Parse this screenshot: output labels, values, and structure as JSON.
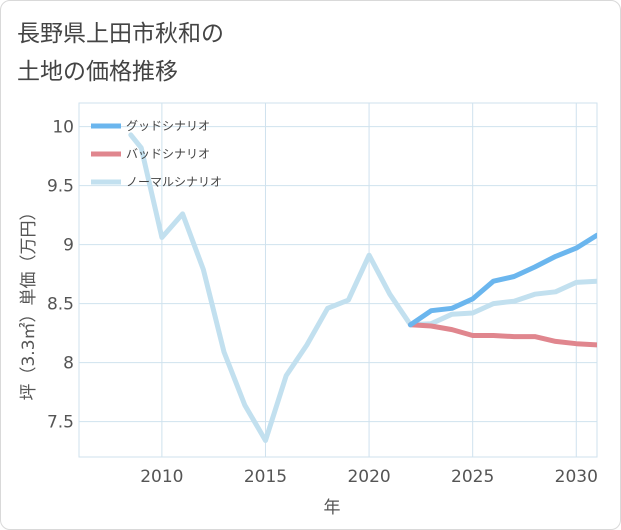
{
  "title": {
    "line1": "長野県上田市秋和の",
    "line2": "土地の価格推移"
  },
  "colors": {
    "good": "#6bb6ee",
    "bad": "#e0868e",
    "normal": "#c2e0ef",
    "grid": "#cfe2ee",
    "axis": "#555555",
    "background": "#ffffff"
  },
  "chart_data": {
    "type": "line",
    "title": "",
    "xlabel": "年",
    "ylabel": "坪（3.3㎡）単価（万円）",
    "xlim": [
      2006,
      2031
    ],
    "ylim": [
      7.2,
      10.2
    ],
    "xticks": [
      2010,
      2015,
      2020,
      2025,
      2030
    ],
    "yticks": [
      7.5,
      8,
      8.5,
      9,
      9.5,
      10
    ],
    "xtick_labels": [
      "2010",
      "2015",
      "2020",
      "2025",
      "2030"
    ],
    "ytick_labels": [
      "7.5",
      "8",
      "8.5",
      "9",
      "9.5",
      "10"
    ],
    "grid": true,
    "legend_position": "top-left",
    "series": [
      {
        "name": "グッドシナリオ",
        "color": "#6bb6ee",
        "x": [
          2022,
          2023,
          2024,
          2025,
          2026,
          2027,
          2028,
          2029,
          2030,
          2031
        ],
        "y": [
          8.32,
          8.44,
          8.46,
          8.54,
          8.69,
          8.73,
          8.81,
          8.9,
          8.97,
          9.08
        ]
      },
      {
        "name": "バッドシナリオ",
        "color": "#e0868e",
        "x": [
          2022,
          2023,
          2024,
          2025,
          2026,
          2027,
          2028,
          2029,
          2030,
          2031
        ],
        "y": [
          8.32,
          8.31,
          8.28,
          8.23,
          8.23,
          8.22,
          8.22,
          8.18,
          8.16,
          8.15
        ]
      },
      {
        "name": "ノーマルシナリオ",
        "color": "#c2e0ef",
        "x": [
          2008.5,
          2009,
          2010,
          2011,
          2012,
          2013,
          2014,
          2015,
          2016,
          2017,
          2018,
          2019,
          2020,
          2021,
          2022,
          2023,
          2024,
          2025,
          2026,
          2027,
          2028,
          2029,
          2030,
          2031
        ],
        "y": [
          9.93,
          9.82,
          9.06,
          9.26,
          8.79,
          8.09,
          7.64,
          7.34,
          7.89,
          8.15,
          8.46,
          8.53,
          8.91,
          8.58,
          8.32,
          8.33,
          8.41,
          8.42,
          8.5,
          8.52,
          8.58,
          8.6,
          8.68,
          8.69
        ]
      }
    ]
  }
}
